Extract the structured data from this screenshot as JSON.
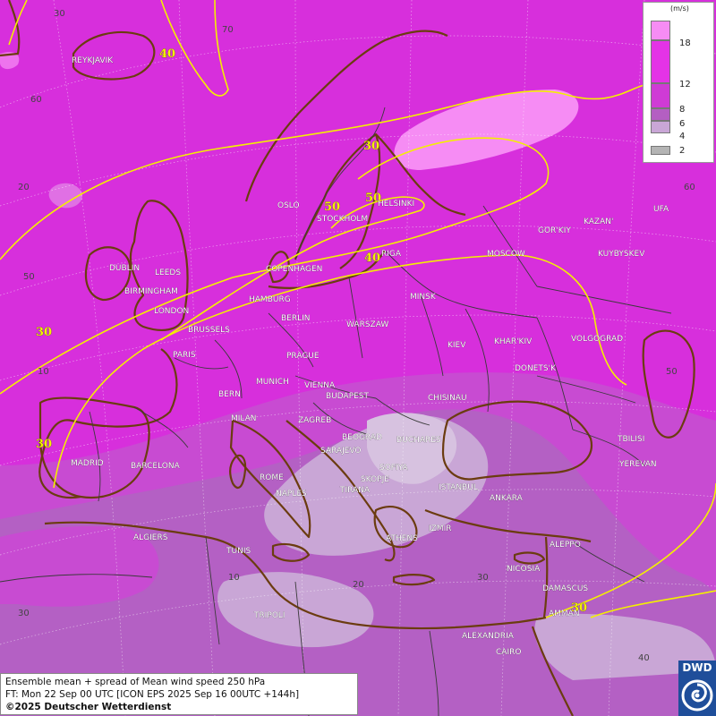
{
  "legend": {
    "unit": "(m/s)",
    "entries": [
      {
        "label": "18",
        "color": "#f68cf4"
      },
      {
        "label": "12",
        "color": "#e433e6"
      },
      {
        "label": "8",
        "color": "#cf3bd5"
      },
      {
        "label": "6",
        "color": "#b45fc2"
      },
      {
        "label": "4",
        "color": "#c9a6d6"
      },
      {
        "label": "2",
        "color": "#b4b4b4"
      }
    ]
  },
  "info": {
    "line1": "Ensemble mean + spread of Mean wind speed 250 hPa",
    "line2": "FT: Mon 22 Sep 00 UTC [ICON EPS 2025 Sep 16 00UTC +144h]",
    "copyright": "©2025 Deutscher Wetterdienst"
  },
  "logo": {
    "text": "DWD"
  },
  "colors": {
    "ocean": "#d72fdc",
    "isotach": "#f4f000",
    "coast": "#6b3c10",
    "border": "#3a3a3a"
  },
  "isotach_labels": [
    "40",
    "30",
    "50",
    "50",
    "40",
    "30",
    "30",
    "30"
  ],
  "grid_labels": [
    "30",
    "70",
    "60",
    "20",
    "50",
    "10",
    "60",
    "50",
    "10",
    "20",
    "30",
    "30",
    "40"
  ],
  "cities": [
    "REYKJAVIK",
    "OSLO",
    "STOCKHOLM",
    "HELSINKI",
    "DUBLIN",
    "LEEDS",
    "BIRMINGHAM",
    "LONDON",
    "COPENHAGEN",
    "HAMBURG",
    "BERLIN",
    "RIGA",
    "MOSCOW",
    "GOR'KIY",
    "KAZAN'",
    "UFA",
    "KUYBYSKEV",
    "MINSK",
    "WARSZAW",
    "KIEV",
    "KHAR'KIV",
    "VOLGOGRAD",
    "BRUSSELS",
    "PARIS",
    "PRAGUE",
    "DONETS'K",
    "MUNICH",
    "VIENNA",
    "BERN",
    "BUDAPEST",
    "CHISINAU",
    "MILAN",
    "ZAGREB",
    "BEOGRAD",
    "BUCHARES",
    "SARAJEVO",
    "SOFIYA",
    "TBILISI",
    "YEREVAN",
    "MADRID",
    "BARCELONA",
    "ROME",
    "NAPLES",
    "SKOPJE",
    "TIRANA",
    "ISTANBUL",
    "ANKARA",
    "IZMIR",
    "ATHENS",
    "ALGIERS",
    "TUNIS",
    "ALEPPO",
    "NICOSIA",
    "DAMASCUS",
    "AMMAN",
    "TRIPOLI",
    "ALEXANDRIA",
    "CAIRO"
  ]
}
